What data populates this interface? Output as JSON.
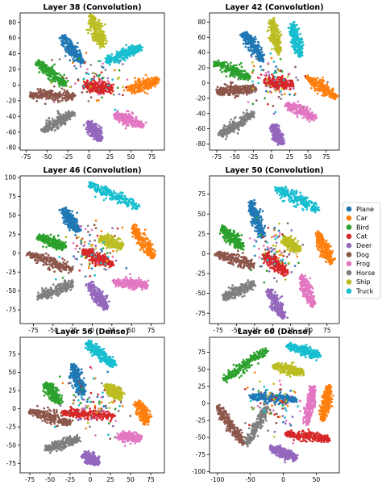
{
  "classes": [
    {
      "name": "Plane",
      "color": "#1f77b4"
    },
    {
      "name": "Car",
      "color": "#ff7f0e"
    },
    {
      "name": "Bird",
      "color": "#2ca02c"
    },
    {
      "name": "Cat",
      "color": "#d62728"
    },
    {
      "name": "Deer",
      "color": "#9467bd"
    },
    {
      "name": "Dog",
      "color": "#8c564b"
    },
    {
      "name": "Frog",
      "color": "#e377c2"
    },
    {
      "name": "Horse",
      "color": "#7f7f7f"
    },
    {
      "name": "Ship",
      "color": "#bcbd22"
    },
    {
      "name": "Truck",
      "color": "#17becf"
    }
  ],
  "legend": {
    "placement": "right-center"
  },
  "chart_data": [
    {
      "type": "scatter",
      "title": "Layer 38 (Convolution)",
      "xlim": [
        -82,
        90
      ],
      "ylim": [
        -83,
        92
      ],
      "xticks": [
        -75,
        -50,
        -25,
        0,
        25,
        50,
        75
      ],
      "yticks": [
        -80,
        -60,
        -40,
        -20,
        0,
        20,
        40,
        60,
        80
      ],
      "clusters": [
        {
          "class": "Plane",
          "x": [
            -32,
            -8
          ],
          "y": [
            62,
            28
          ]
        },
        {
          "class": "Car",
          "x": [
            48,
            82
          ],
          "y": [
            -6,
            6
          ]
        },
        {
          "class": "Bird",
          "x": [
            -62,
            -28
          ],
          "y": [
            30,
            0
          ]
        },
        {
          "class": "Cat",
          "x": [
            -5,
            28
          ],
          "y": [
            0,
            -5
          ]
        },
        {
          "class": "Deer",
          "x": [
            0,
            14
          ],
          "y": [
            -48,
            -70
          ]
        },
        {
          "class": "Dog",
          "x": [
            -70,
            -18
          ],
          "y": [
            -12,
            -14
          ]
        },
        {
          "class": "Frog",
          "x": [
            30,
            66
          ],
          "y": [
            -38,
            -52
          ]
        },
        {
          "class": "Horse",
          "x": [
            -55,
            -18
          ],
          "y": [
            -58,
            -35
          ]
        },
        {
          "class": "Ship",
          "x": [
            3,
            17
          ],
          "y": [
            88,
            50
          ]
        },
        {
          "class": "Truck",
          "x": [
            22,
            62
          ],
          "y": [
            30,
            48
          ]
        }
      ]
    },
    {
      "type": "scatter",
      "title": "Layer 42 (Convolution)",
      "xlim": [
        -85,
        93
      ],
      "ylim": [
        -88,
        92
      ],
      "xticks": [
        -75,
        -50,
        -25,
        0,
        25,
        50,
        75
      ],
      "yticks": [
        -80,
        -60,
        -40,
        -20,
        0,
        20,
        40,
        60,
        80
      ],
      "clusters": [
        {
          "class": "Plane",
          "x": [
            -38,
            -12
          ],
          "y": [
            66,
            30
          ]
        },
        {
          "class": "Car",
          "x": [
            48,
            88
          ],
          "y": [
            8,
            -18
          ]
        },
        {
          "class": "Bird",
          "x": [
            -78,
            -30
          ],
          "y": [
            26,
            8
          ]
        },
        {
          "class": "Cat",
          "x": [
            -10,
            30
          ],
          "y": [
            2,
            -2
          ]
        },
        {
          "class": "Deer",
          "x": [
            2,
            14
          ],
          "y": [
            -55,
            -80
          ]
        },
        {
          "class": "Dog",
          "x": [
            -75,
            -22
          ],
          "y": [
            -10,
            -8
          ]
        },
        {
          "class": "Frog",
          "x": [
            20,
            60
          ],
          "y": [
            -28,
            -46
          ]
        },
        {
          "class": "Horse",
          "x": [
            -70,
            -25
          ],
          "y": [
            -68,
            -40
          ]
        },
        {
          "class": "Ship",
          "x": [
            0,
            10
          ],
          "y": [
            83,
            40
          ]
        },
        {
          "class": "Truck",
          "x": [
            28,
            40
          ],
          "y": [
            78,
            36
          ]
        }
      ]
    },
    {
      "type": "scatter",
      "title": "Layer 46 (Convolution)",
      "xlim": [
        -92,
        92
      ],
      "ylim": [
        -93,
        102
      ],
      "xticks": [
        -75,
        -50,
        -25,
        0,
        25,
        50,
        75
      ],
      "yticks": [
        -75,
        -50,
        -25,
        0,
        25,
        50,
        75,
        100
      ],
      "clusters": [
        {
          "class": "Plane",
          "x": [
            -38,
            -18
          ],
          "y": [
            58,
            28
          ]
        },
        {
          "class": "Car",
          "x": [
            52,
            78
          ],
          "y": [
            35,
            -5
          ]
        },
        {
          "class": "Bird",
          "x": [
            -68,
            -35
          ],
          "y": [
            22,
            8
          ]
        },
        {
          "class": "Cat",
          "x": [
            -12,
            26
          ],
          "y": [
            2,
            -15
          ]
        },
        {
          "class": "Deer",
          "x": [
            -5,
            18
          ],
          "y": [
            -40,
            -72
          ]
        },
        {
          "class": "Dog",
          "x": [
            -82,
            -25
          ],
          "y": [
            -1,
            -22
          ]
        },
        {
          "class": "Frog",
          "x": [
            28,
            70
          ],
          "y": [
            -38,
            -42
          ]
        },
        {
          "class": "Horse",
          "x": [
            -68,
            -25
          ],
          "y": [
            -58,
            -40
          ]
        },
        {
          "class": "Ship",
          "x": [
            10,
            38
          ],
          "y": [
            20,
            8
          ]
        },
        {
          "class": "Truck",
          "x": [
            -5,
            60
          ],
          "y": [
            92,
            60
          ]
        }
      ]
    },
    {
      "type": "scatter",
      "title": "Layer 50 (Convolution)",
      "xlim": [
        -87,
        92
      ],
      "ylim": [
        -88,
        98
      ],
      "xticks": [
        -75,
        -50,
        -25,
        0,
        25,
        50,
        75
      ],
      "yticks": [
        -75,
        -50,
        -25,
        0,
        25,
        50,
        75
      ],
      "clusters": [
        {
          "class": "Plane",
          "x": [
            -30,
            -15
          ],
          "y": [
            65,
            22
          ]
        },
        {
          "class": "Car",
          "x": [
            62,
            82
          ],
          "y": [
            25,
            -12
          ]
        },
        {
          "class": "Bird",
          "x": [
            -70,
            -42
          ],
          "y": [
            32,
            8
          ]
        },
        {
          "class": "Cat",
          "x": [
            -12,
            20
          ],
          "y": [
            0,
            -25
          ]
        },
        {
          "class": "Deer",
          "x": [
            -5,
            15
          ],
          "y": [
            -45,
            -80
          ]
        },
        {
          "class": "Dog",
          "x": [
            -78,
            -25
          ],
          "y": [
            0,
            -15
          ]
        },
        {
          "class": "Frog",
          "x": [
            40,
            55
          ],
          "y": [
            -28,
            -65
          ]
        },
        {
          "class": "Horse",
          "x": [
            -68,
            -25
          ],
          "y": [
            -55,
            -38
          ]
        },
        {
          "class": "Ship",
          "x": [
            15,
            38
          ],
          "y": [
            18,
            5
          ]
        },
        {
          "class": "Truck",
          "x": [
            5,
            62
          ],
          "y": [
            82,
            55
          ]
        }
      ]
    },
    {
      "type": "scatter",
      "title": "Layer 56 (Dense)",
      "xlim": [
        -87,
        92
      ],
      "ylim": [
        -88,
        98
      ],
      "xticks": [
        -75,
        -50,
        -25,
        0,
        25,
        50,
        75
      ],
      "yticks": [
        -75,
        -50,
        -25,
        0,
        25,
        50,
        75
      ],
      "clusters": [
        {
          "class": "Plane",
          "x": [
            -22,
            -10
          ],
          "y": [
            60,
            20
          ]
        },
        {
          "class": "Car",
          "x": [
            60,
            70
          ],
          "y": [
            10,
            -20
          ]
        },
        {
          "class": "Bird",
          "x": [
            -55,
            -38
          ],
          "y": [
            35,
            8
          ]
        },
        {
          "class": "Cat",
          "x": [
            -35,
            30
          ],
          "y": [
            -5,
            -10
          ]
        },
        {
          "class": "Deer",
          "x": [
            -8,
            10
          ],
          "y": [
            -62,
            -75
          ]
        },
        {
          "class": "Dog",
          "x": [
            -75,
            -25
          ],
          "y": [
            -3,
            -20
          ]
        },
        {
          "class": "Frog",
          "x": [
            35,
            62
          ],
          "y": [
            -38,
            -40
          ]
        },
        {
          "class": "Horse",
          "x": [
            -55,
            -15
          ],
          "y": [
            -55,
            -42
          ]
        },
        {
          "class": "Ship",
          "x": [
            20,
            38
          ],
          "y": [
            32,
            15
          ]
        },
        {
          "class": "Truck",
          "x": [
            -5,
            30
          ],
          "y": [
            90,
            60
          ]
        }
      ]
    },
    {
      "type": "scatter",
      "title": "Layer 60 (Dense)",
      "xlim": [
        -112,
        85
      ],
      "ylim": [
        -102,
        97
      ],
      "xticks": [
        -100,
        -50,
        0,
        50
      ],
      "yticks": [
        -100,
        -75,
        -50,
        -25,
        0,
        25,
        50,
        75
      ],
      "clusters": [
        {
          "class": "Plane",
          "x": [
            -50,
            20
          ],
          "y": [
            10,
            5
          ]
        },
        {
          "class": "Car",
          "x": [
            70,
            60
          ],
          "y": [
            25,
            -25
          ]
        },
        {
          "class": "Bird",
          "x": [
            -90,
            -25
          ],
          "y": [
            35,
            78
          ]
        },
        {
          "class": "Cat",
          "x": [
            5,
            70
          ],
          "y": [
            -45,
            -52
          ]
        },
        {
          "class": "Deer",
          "x": [
            -20,
            20
          ],
          "y": [
            -65,
            -80
          ]
        },
        {
          "class": "Dog",
          "x": [
            -100,
            -60
          ],
          "y": [
            -5,
            -60
          ]
        },
        {
          "class": "Frog",
          "x": [
            45,
            35
          ],
          "y": [
            25,
            -30
          ]
        },
        {
          "class": "Horse",
          "x": [
            -55,
            -25
          ],
          "y": [
            -60,
            -5
          ]
        },
        {
          "class": "Ship",
          "x": [
            -15,
            30
          ],
          "y": [
            55,
            45
          ]
        },
        {
          "class": "Truck",
          "x": [
            5,
            55
          ],
          "y": [
            85,
            70
          ]
        }
      ]
    }
  ]
}
